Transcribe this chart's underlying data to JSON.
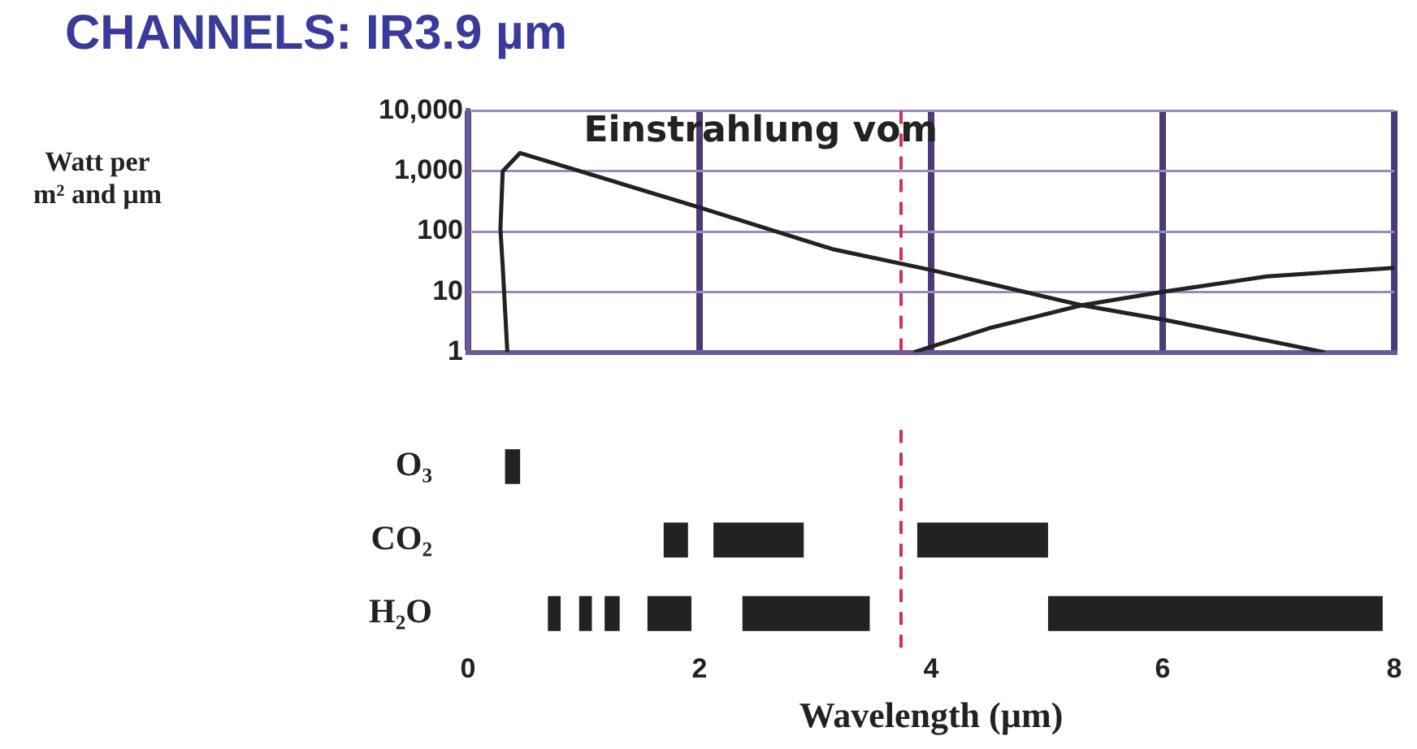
{
  "chart_data": [
    {
      "type": "line",
      "title": "CHANNELS: IR3.9 µm",
      "ylabel": "Watt per m² and µm",
      "annotations": [
        "Einstrahlung vom"
      ],
      "log": "y",
      "grid": true,
      "legend": false,
      "tick_labels": "y",
      "marker": "none",
      "line_style": "solid",
      "xlim": [
        0,
        8
      ],
      "xticks": [
        0,
        2,
        4,
        6,
        8
      ],
      "ylim": [
        1,
        10000
      ],
      "yticks": [
        {
          "value": 1,
          "label": "1"
        },
        {
          "value": 10,
          "label": "10"
        },
        {
          "value": 100,
          "label": "100"
        },
        {
          "value": 1000,
          "label": "1,000"
        },
        {
          "value": 10000,
          "label": "10,000"
        }
      ],
      "ref_lines": [
        {
          "axis": "x",
          "value": 3.74,
          "color": "#cc3355",
          "line_style": "dashed"
        }
      ],
      "series": [
        {
          "color": "#222222",
          "x": [
            0.34,
            0.3,
            0.28,
            0.3,
            0.45,
            2.0,
            3.15,
            4.0,
            5.3,
            6.0,
            7.4
          ],
          "values": [
            1,
            26,
            110,
            1000,
            2000,
            250,
            51,
            23,
            6,
            3.5,
            1
          ]
        },
        {
          "color": "#222222",
          "x": [
            3.85,
            4.5,
            5.3,
            6.0,
            6.9,
            8.0
          ],
          "values": [
            1,
            2.5,
            6,
            10,
            18,
            25
          ]
        }
      ]
    },
    {
      "type": "bar",
      "orientation": "horizontal",
      "xlabel": "Wavelength (µm)",
      "legend": false,
      "grid": false,
      "categories": [
        "O₃",
        "CO₂",
        "H₂O"
      ],
      "xlim": [
        0,
        8
      ],
      "xticks": [
        0,
        2,
        4,
        6,
        8
      ],
      "ref_lines": [
        {
          "axis": "x",
          "value": 3.74,
          "color": "#cc3355",
          "line_style": "dashed"
        }
      ],
      "series": [
        {
          "color": "#222222",
          "base": [
            0.32,
            1.69,
            0.69
          ],
          "values": [
            0.13,
            0.21,
            0.11
          ]
        },
        {
          "color": "#222222",
          "base": [
            null,
            2.12,
            0.96
          ],
          "values": [
            null,
            0.78,
            0.11
          ]
        },
        {
          "color": "#222222",
          "base": [
            null,
            3.88,
            1.18
          ],
          "values": [
            null,
            1.13,
            0.13
          ]
        },
        {
          "color": "#222222",
          "base": [
            null,
            null,
            1.55
          ],
          "values": [
            null,
            null,
            0.38
          ]
        },
        {
          "color": "#222222",
          "base": [
            null,
            null,
            2.37
          ],
          "values": [
            null,
            null,
            1.1
          ]
        },
        {
          "color": "#222222",
          "base": [
            null,
            null,
            5.01
          ],
          "values": [
            null,
            null,
            2.89
          ]
        }
      ]
    }
  ]
}
